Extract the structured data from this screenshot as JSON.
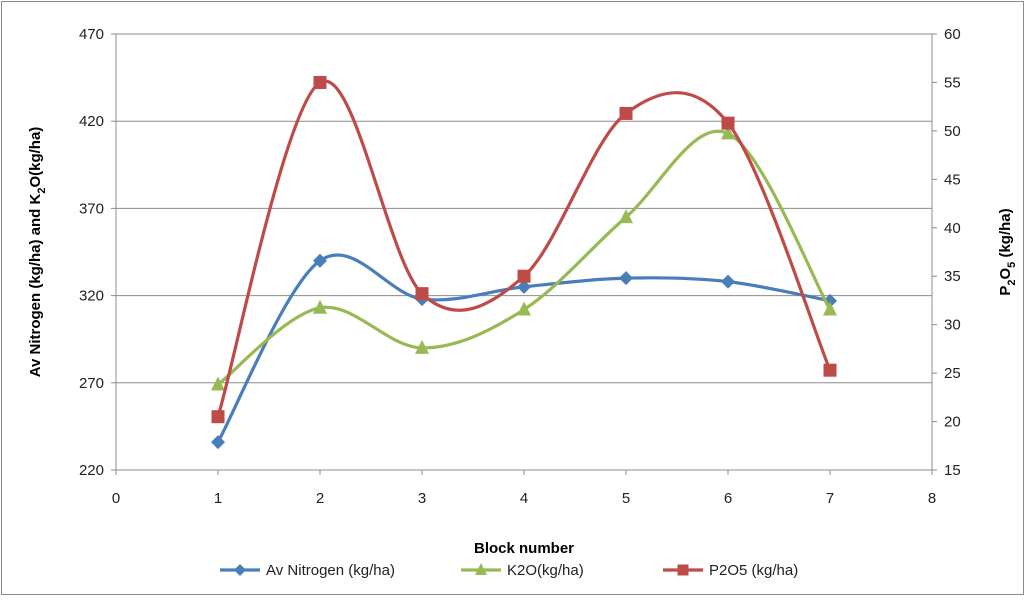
{
  "chart_data": {
    "type": "line",
    "smooth": true,
    "title": "",
    "xlabel": "Block number",
    "ylabel_left": {
      "main": "Av Nitrogen (kg/ha) and K",
      "sub": "2",
      "tail": "O(kg/ha)"
    },
    "ylabel_right": {
      "main": "P",
      "sub": "2",
      "mid": "O",
      "sub2": "5",
      "tail": " (kg/ha)"
    },
    "xlim": [
      0,
      8
    ],
    "x_ticks": [
      "0",
      "1",
      "2",
      "3",
      "4",
      "5",
      "6",
      "7",
      "8"
    ],
    "ylim_left": [
      220,
      470
    ],
    "y_ticks_left": [
      "220",
      "270",
      "320",
      "370",
      "420",
      "470"
    ],
    "ylim_right": [
      15,
      60
    ],
    "y_ticks_right": [
      "15",
      "20",
      "25",
      "30",
      "35",
      "40",
      "45",
      "50",
      "55",
      "60"
    ],
    "grid": "horizontal",
    "legend_position": "bottom",
    "series": [
      {
        "name": "Av Nitrogen (kg/ha)",
        "axis": "left",
        "marker": "diamond",
        "color": "#4A7EBB",
        "x": [
          1,
          2,
          3,
          4,
          5,
          6,
          7
        ],
        "values": [
          236,
          340,
          318,
          325,
          330,
          328,
          317
        ]
      },
      {
        "name": "K2O(kg/ha)",
        "axis": "left",
        "marker": "triangle",
        "color": "#98B954",
        "x": [
          1,
          2,
          3,
          4,
          5,
          6,
          7
        ],
        "values": [
          269,
          313,
          290,
          312,
          365,
          413,
          312
        ]
      },
      {
        "name": "P2O5 (kg/ha)",
        "axis": "right",
        "marker": "square",
        "color": "#BE4B48",
        "x": [
          1,
          2,
          3,
          4,
          5,
          6,
          7
        ],
        "values": [
          20.5,
          55,
          33.2,
          35,
          51.8,
          50.8,
          25.3
        ]
      }
    ]
  }
}
